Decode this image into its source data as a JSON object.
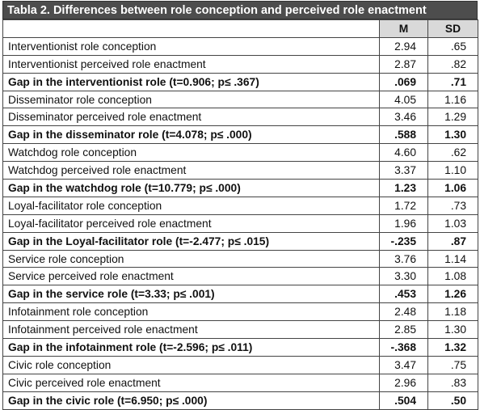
{
  "table": {
    "title": "Tabla 2. Differences between role conception and perceived role enactment",
    "header": [
      "M",
      "SD"
    ],
    "rows": [
      {
        "cells": [
          "Interventionist role conception",
          "2.94",
          ".65"
        ],
        "bold": false
      },
      {
        "cells": [
          "Interventionist perceived role enactment",
          "2.87",
          ".82"
        ],
        "bold": false
      },
      {
        "cells": [
          "Gap in the interventionist role (t=0.906; p≤ .367)",
          ".069",
          ".71"
        ],
        "bold": true
      },
      {
        "cells": [
          "Disseminator role conception",
          "4.05",
          "1.16"
        ],
        "bold": false
      },
      {
        "cells": [
          "Disseminator perceived role enactment",
          "3.46",
          "1.29"
        ],
        "bold": false
      },
      {
        "cells": [
          "Gap in the disseminator role (t=4.078; p≤ .000)",
          ".588",
          "1.30"
        ],
        "bold": true
      },
      {
        "cells": [
          "Watchdog role conception",
          "4.60",
          ".62"
        ],
        "bold": false
      },
      {
        "cells": [
          "Watchdog perceived role enactment",
          "3.37",
          "1.10"
        ],
        "bold": false
      },
      {
        "cells": [
          "Gap in the watchdog role (t=10.779; p≤ .000)",
          "1.23",
          "1.06"
        ],
        "bold": true
      },
      {
        "cells": [
          "Loyal-facilitator role conception",
          "1.72",
          ".73"
        ],
        "bold": false
      },
      {
        "cells": [
          "Loyal-facilitator perceived role enactment",
          "1.96",
          "1.03"
        ],
        "bold": false
      },
      {
        "cells": [
          "Gap in the Loyal-facilitator role (t=-2.477; p≤ .015)",
          "-.235",
          ".87"
        ],
        "bold": true
      },
      {
        "cells": [
          "Service role conception",
          "3.76",
          "1.14"
        ],
        "bold": false
      },
      {
        "cells": [
          "Service perceived role enactment",
          "3.30",
          "1.08"
        ],
        "bold": false
      },
      {
        "cells": [
          "Gap in the service role (t=3.33; p≤ .001)",
          ".453",
          "1.26"
        ],
        "bold": true
      },
      {
        "cells": [
          "Infotainment role conception",
          "2.48",
          "1.18"
        ],
        "bold": false
      },
      {
        "cells": [
          "Infotainment perceived role enactment",
          "2.85",
          "1.30"
        ],
        "bold": false
      },
      {
        "cells": [
          "Gap in the infotainment role (t=-2.596; p≤ .011)",
          "-.368",
          "1.32"
        ],
        "bold": true
      },
      {
        "cells": [
          "Civic role conception",
          "3.47",
          ".75"
        ],
        "bold": false
      },
      {
        "cells": [
          "Civic perceived role enactment",
          "2.96",
          ".83"
        ],
        "bold": false
      },
      {
        "cells": [
          "Gap in the civic role (t=6.950; p≤ .000)",
          ".504",
          ".50"
        ],
        "bold": true
      }
    ]
  }
}
